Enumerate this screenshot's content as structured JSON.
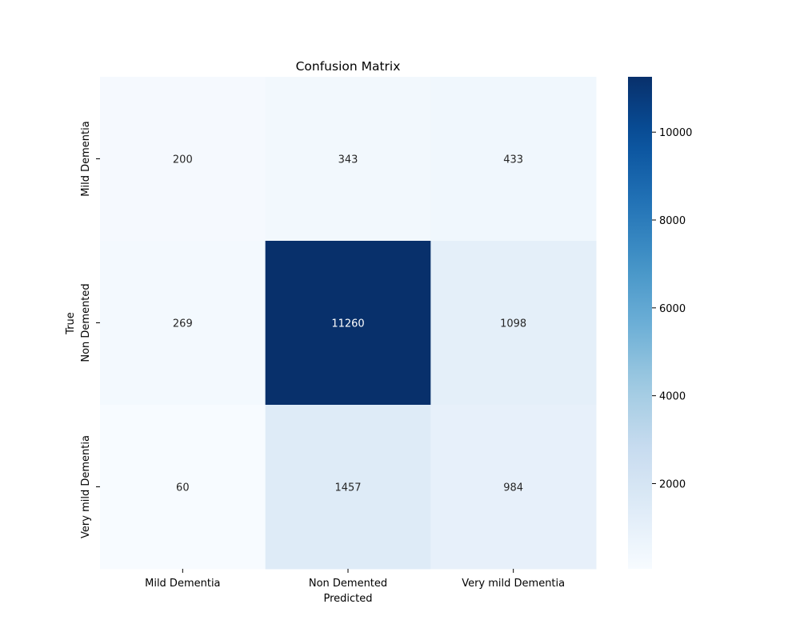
{
  "chart_data": {
    "type": "heatmap",
    "title": "Confusion Matrix",
    "xlabel": "Predicted",
    "ylabel": "True",
    "x_categories": [
      "Mild Dementia",
      "Non Demented",
      "Very mild Dementia"
    ],
    "y_categories": [
      "Mild Dementia",
      "Non Demented",
      "Very mild Dementia"
    ],
    "values": [
      [
        200,
        343,
        433
      ],
      [
        269,
        11260,
        1098
      ],
      [
        60,
        1457,
        984
      ]
    ],
    "colormap": "Blues",
    "colorbar": {
      "min": 60,
      "max": 11260,
      "ticks": [
        2000,
        4000,
        6000,
        8000,
        10000
      ],
      "tick_labels": [
        "2000",
        "4000",
        "6000",
        "8000",
        "10000"
      ]
    }
  }
}
